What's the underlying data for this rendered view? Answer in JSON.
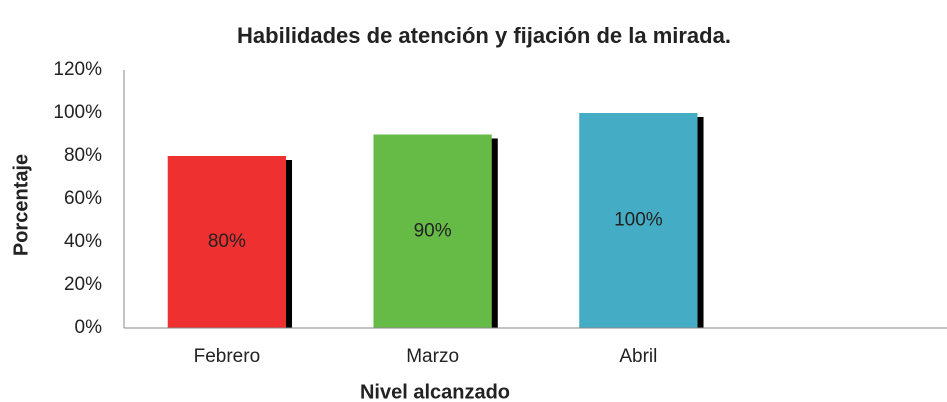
{
  "chart_data": {
    "type": "bar",
    "title": "Habilidades de atención y fijación de la mirada.",
    "x_label": "Nivel alcanzado",
    "y_label": "Porcentaje",
    "categories": [
      "Febrero",
      "Marzo",
      "Abril",
      null
    ],
    "values": [
      80,
      90,
      100,
      null
    ],
    "value_labels": [
      "80%",
      "90%",
      "100%",
      null
    ],
    "colors": [
      "#ee3030",
      "#66bb47",
      "#44adc5",
      null
    ],
    "shadow": true,
    "ylim": [
      0,
      120
    ],
    "yticks": [
      {
        "value": 0,
        "label": "0%"
      },
      {
        "value": 20,
        "label": "20%"
      },
      {
        "value": 40,
        "label": "40%"
      },
      {
        "value": 60,
        "label": "60%"
      },
      {
        "value": 80,
        "label": "80%"
      },
      {
        "value": 100,
        "label": "100%"
      },
      {
        "value": 120,
        "label": "120%"
      }
    ],
    "grid": false
  }
}
